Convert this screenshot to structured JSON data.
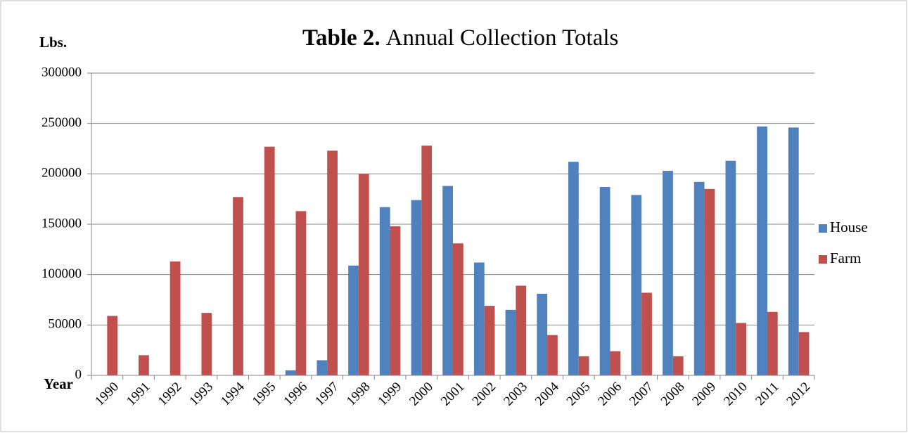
{
  "chart_data": {
    "type": "bar",
    "title_label": "Table 2.",
    "title": "Annual Collection Totals",
    "y_label": "Lbs.",
    "x_label": "Year",
    "categories": [
      "1990",
      "1991",
      "1992",
      "1993",
      "1994",
      "1995",
      "1996",
      "1997",
      "1998",
      "1999",
      "2000",
      "2001",
      "2002",
      "2003",
      "2004",
      "2005",
      "2006",
      "2007",
      "2008",
      "2009",
      "2010",
      "2011",
      "2012"
    ],
    "series": [
      {
        "name": "House",
        "color": "#4f81bd",
        "values": [
          0,
          0,
          0,
          0,
          0,
          0,
          5000,
          15000,
          109000,
          167000,
          174000,
          188000,
          112000,
          65000,
          81000,
          212000,
          187000,
          179000,
          203000,
          192000,
          213000,
          247000,
          246000
        ]
      },
      {
        "name": "Farm",
        "color": "#c0504d",
        "values": [
          59000,
          20000,
          113000,
          62000,
          177000,
          227000,
          163000,
          223000,
          200000,
          148000,
          228000,
          131000,
          69000,
          89000,
          40000,
          19000,
          24000,
          82000,
          19000,
          185000,
          52000,
          63000,
          43000
        ]
      }
    ],
    "ylim": [
      0,
      300000
    ],
    "yticks": [
      0,
      50000,
      100000,
      150000,
      200000,
      250000,
      300000
    ],
    "grid": true,
    "legend": "right"
  }
}
